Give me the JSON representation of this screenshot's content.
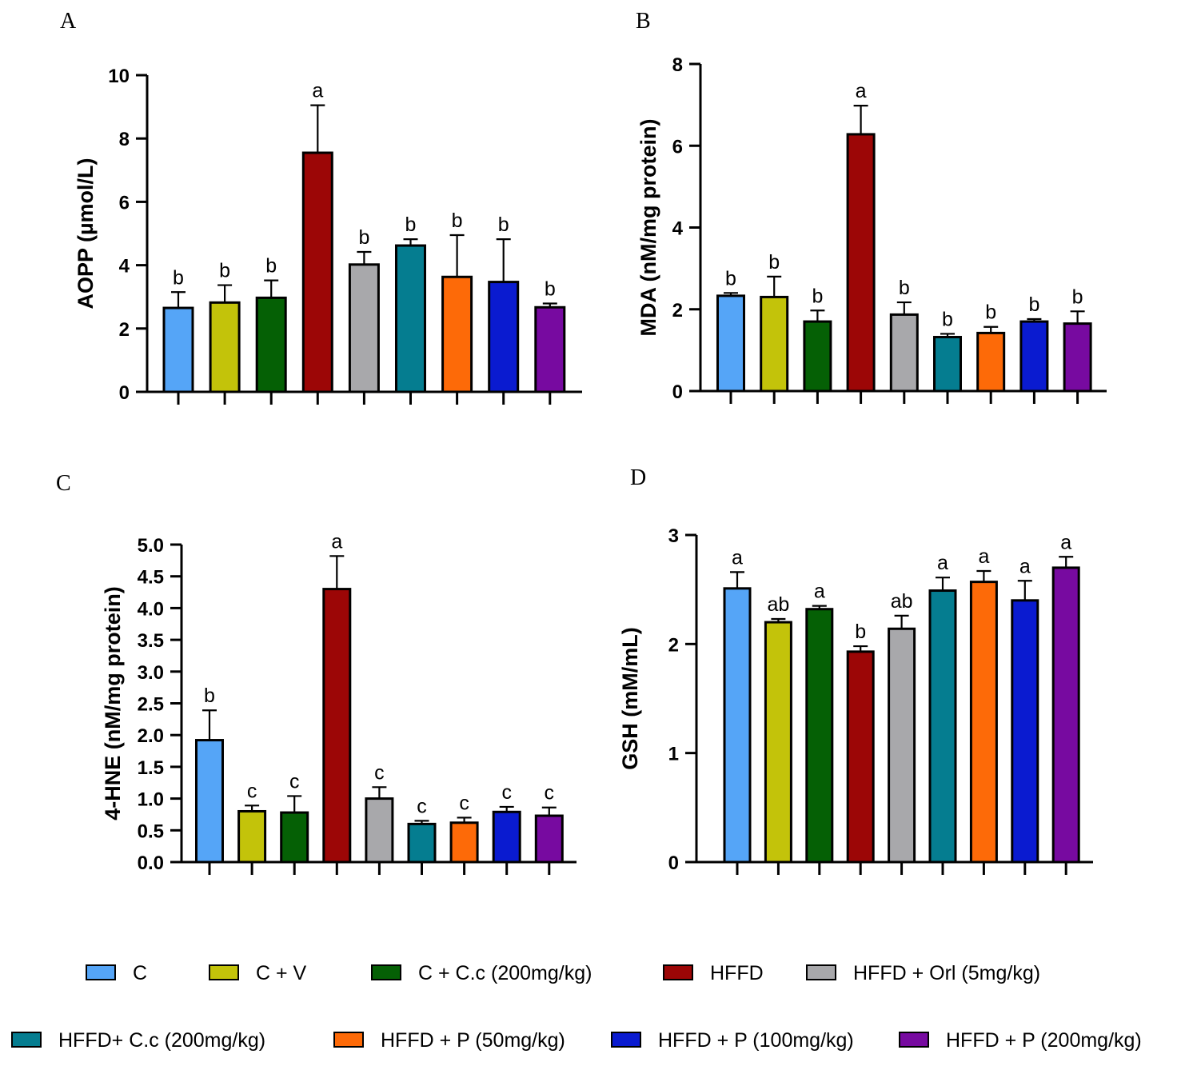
{
  "colors": {
    "C": "#55a5f7",
    "C + V": "#c3c30a",
    "C + C.c (200mg/kg)": "#056005",
    "HFFD": "#9c0606",
    "HFFD + Orl (5mg/kg)": "#a8a8ab",
    "HFFD+ C.c (200mg/kg)": "#057d90",
    "HFFD + P (50mg/kg)": "#fd6a08",
    "HFFD + P (100mg/kg)": "#0a1bd0",
    "HFFD + P (200mg/kg)": "#770aa0"
  },
  "legend": {
    "items": [
      "C",
      "C + V",
      "C + C.c (200mg/kg)",
      "HFFD",
      "HFFD + Orl (5mg/kg)",
      "HFFD+ C.c (200mg/kg)",
      "HFFD + P (50mg/kg)",
      "HFFD + P (100mg/kg)",
      "HFFD + P (200mg/kg)"
    ]
  },
  "chart_data": [
    {
      "panel": "A",
      "type": "bar",
      "categories": [
        "C",
        "C + V",
        "C + C.c (200mg/kg)",
        "HFFD",
        "HFFD + Orl (5mg/kg)",
        "HFFD+ C.c (200mg/kg)",
        "HFFD + P (50mg/kg)",
        "HFFD + P (100mg/kg)",
        "HFFD + P (200mg/kg)"
      ],
      "values": [
        2.65,
        2.82,
        2.97,
        7.55,
        4.02,
        4.62,
        3.63,
        3.47,
        2.67
      ],
      "errors": [
        0.5,
        0.55,
        0.55,
        1.5,
        0.4,
        0.2,
        1.32,
        1.35,
        0.12
      ],
      "sig_labels": [
        "b",
        "b",
        "b",
        "a",
        "b",
        "b",
        "b",
        "b",
        "b"
      ],
      "ylabel": "AOPP (µmol/L)",
      "ylim": [
        0,
        10
      ],
      "yticks": [
        "0",
        "2",
        "4",
        "6",
        "8",
        "10"
      ]
    },
    {
      "panel": "B",
      "type": "bar",
      "categories": [
        "C",
        "C + V",
        "C + C.c (200mg/kg)",
        "HFFD",
        "HFFD + Orl (5mg/kg)",
        "HFFD+ C.c (200mg/kg)",
        "HFFD + P (50mg/kg)",
        "HFFD + P (100mg/kg)",
        "HFFD + P (200mg/kg)"
      ],
      "values": [
        2.33,
        2.3,
        1.7,
        6.28,
        1.87,
        1.32,
        1.42,
        1.7,
        1.65
      ],
      "errors": [
        0.07,
        0.5,
        0.27,
        0.7,
        0.3,
        0.08,
        0.15,
        0.06,
        0.3
      ],
      "sig_labels": [
        "b",
        "b",
        "b",
        "a",
        "b",
        "b",
        "b",
        "b",
        "b"
      ],
      "ylabel": "MDA (nM/mg protein)",
      "ylim": [
        0,
        8
      ],
      "yticks": [
        "0",
        "2",
        "4",
        "6",
        "8"
      ]
    },
    {
      "panel": "C",
      "type": "bar",
      "categories": [
        "C",
        "C + V",
        "C + C.c (200mg/kg)",
        "HFFD",
        "HFFD + Orl (5mg/kg)",
        "HFFD+ C.c (200mg/kg)",
        "HFFD + P (50mg/kg)",
        "HFFD + P (100mg/kg)",
        "HFFD + P (200mg/kg)"
      ],
      "values": [
        1.92,
        0.8,
        0.78,
        4.3,
        1.0,
        0.6,
        0.62,
        0.79,
        0.73
      ],
      "errors": [
        0.47,
        0.09,
        0.26,
        0.52,
        0.18,
        0.05,
        0.08,
        0.08,
        0.13
      ],
      "sig_labels": [
        "b",
        "c",
        "c",
        "a",
        "c",
        "c",
        "c",
        "c",
        "c"
      ],
      "ylabel": "4-HNE (nM/mg protein)",
      "ylim": [
        0,
        5
      ],
      "yticks": [
        "0.0",
        "0.5",
        "1.0",
        "1.5",
        "2.0",
        "2.5",
        "3.0",
        "3.5",
        "4.0",
        "4.5",
        "5.0"
      ]
    },
    {
      "panel": "D",
      "type": "bar",
      "categories": [
        "C",
        "C + V",
        "C + C.c (200mg/kg)",
        "HFFD",
        "HFFD + Orl (5mg/kg)",
        "HFFD+ C.c (200mg/kg)",
        "HFFD + P (50mg/kg)",
        "HFFD + P (100mg/kg)",
        "HFFD + P (200mg/kg)"
      ],
      "values": [
        2.51,
        2.2,
        2.32,
        1.93,
        2.14,
        2.49,
        2.57,
        2.4,
        2.7
      ],
      "errors": [
        0.15,
        0.03,
        0.03,
        0.05,
        0.12,
        0.12,
        0.1,
        0.18,
        0.1
      ],
      "sig_labels": [
        "a",
        "ab",
        "a",
        "b",
        "ab",
        "a",
        "a",
        "a",
        "a"
      ],
      "ylabel": "GSH (mM/mL)",
      "ylim": [
        0,
        3
      ],
      "yticks": [
        "0",
        "1",
        "2",
        "3"
      ]
    }
  ]
}
